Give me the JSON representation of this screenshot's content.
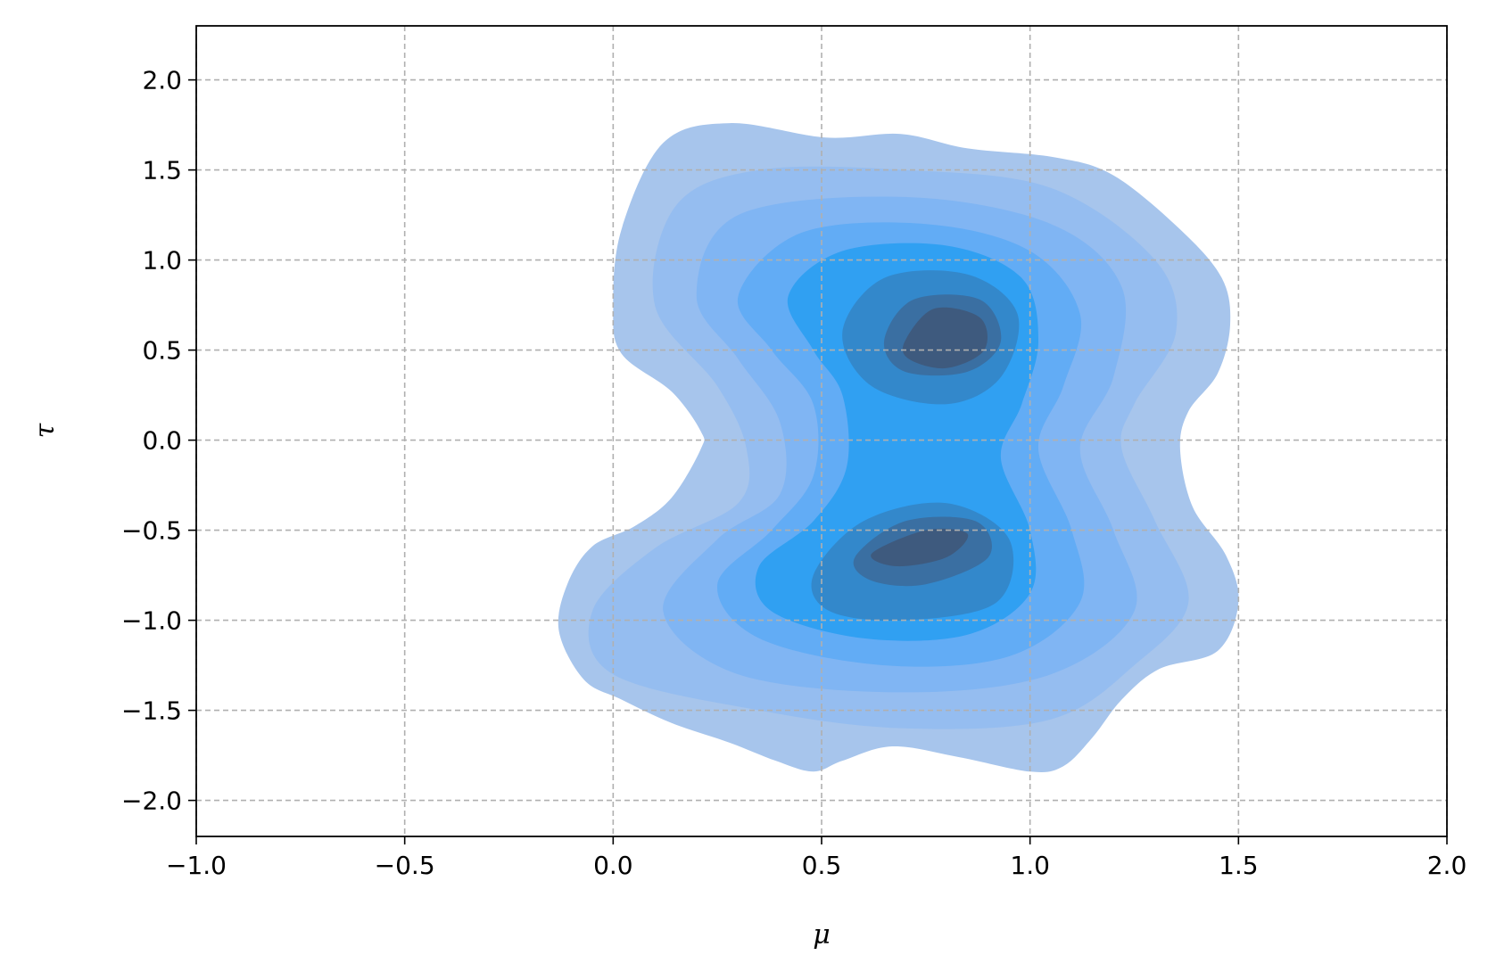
{
  "chart_data": {
    "type": "contour",
    "xlabel": "μ",
    "ylabel": "τ",
    "xlim": [
      -1,
      2
    ],
    "ylim": [
      -2.2,
      2.3
    ],
    "xticks": [
      {
        "value": -1,
        "label": "−1.0"
      },
      {
        "value": -0.5,
        "label": "−0.5"
      },
      {
        "value": 0,
        "label": "0.0"
      },
      0.5,
      {
        "value": 1,
        "label": "1.0"
      },
      1.5,
      {
        "value": 2,
        "label": "2.0"
      }
    ],
    "yticks": [
      {
        "value": -2,
        "label": "−2.0"
      },
      {
        "value": -1.5,
        "label": "−1.5"
      },
      {
        "value": -1,
        "label": "−1.0"
      },
      {
        "value": -0.5,
        "label": "−0.5"
      },
      {
        "value": 0,
        "label": "0.0"
      },
      0.5,
      {
        "value": 1,
        "label": "1.0"
      },
      1.5,
      {
        "value": 2,
        "label": "2.0"
      }
    ],
    "grid": true,
    "series": [
      {
        "color": "#a7c5ec",
        "x": [
          0.0,
          0.02,
          0.12,
          0.28,
          0.51,
          0.69,
          0.85,
          1.06,
          1.2,
          1.36,
          1.46,
          1.48,
          1.45,
          1.38,
          1.36,
          1.39,
          1.47,
          1.5,
          1.45,
          1.31,
          1.22,
          1.15,
          1.08,
          1.0,
          0.83,
          0.67,
          0.55,
          0.48,
          0.39,
          0.28,
          0.14,
          0.02,
          -0.07,
          -0.13,
          -0.11,
          -0.05,
          0.05,
          0.14,
          0.21,
          0.21,
          0.14,
          0.02
        ],
        "y": [
          0.74,
          1.17,
          1.65,
          1.76,
          1.68,
          1.7,
          1.62,
          1.57,
          1.47,
          1.17,
          0.9,
          0.64,
          0.37,
          0.16,
          -0.05,
          -0.37,
          -0.64,
          -0.9,
          -1.17,
          -1.27,
          -1.44,
          -1.65,
          -1.81,
          -1.84,
          -1.76,
          -1.7,
          -1.78,
          -1.84,
          -1.78,
          -1.68,
          -1.57,
          -1.44,
          -1.33,
          -1.06,
          -0.8,
          -0.59,
          -0.48,
          -0.32,
          -0.05,
          0.05,
          0.27,
          0.48
        ]
      },
      {
        "color": "#95bdf0",
        "x": [
          0.1,
          0.15,
          0.35,
          0.7,
          1.05,
          1.3,
          1.35,
          1.25,
          1.22,
          1.3,
          1.38,
          1.25,
          1.05,
          0.7,
          0.35,
          0.0,
          -0.05,
          0.1,
          0.3,
          0.32,
          0.25
        ],
        "y": [
          0.75,
          1.3,
          1.5,
          1.5,
          1.4,
          1.0,
          0.6,
          0.2,
          -0.05,
          -0.45,
          -0.9,
          -1.25,
          -1.55,
          -1.6,
          -1.5,
          -1.3,
          -0.95,
          -0.6,
          -0.35,
          -0.05,
          0.3
        ]
      },
      {
        "color": "#80b5f3",
        "x": [
          0.2,
          0.3,
          0.7,
          1.05,
          1.22,
          1.2,
          1.12,
          1.2,
          1.25,
          1.05,
          0.7,
          0.3,
          0.12,
          0.25,
          0.4,
          0.4,
          0.3
        ],
        "y": [
          0.8,
          1.25,
          1.35,
          1.2,
          0.85,
          0.35,
          -0.05,
          -0.5,
          -0.95,
          -1.3,
          -1.4,
          -1.3,
          -0.95,
          -0.55,
          -0.3,
          0.1,
          0.45
        ]
      },
      {
        "color": "#62acf5",
        "x": [
          0.3,
          0.45,
          0.75,
          1.0,
          1.12,
          1.08,
          1.02,
          1.1,
          1.12,
          0.95,
          0.65,
          0.35,
          0.25,
          0.38,
          0.48,
          0.48,
          0.38
        ],
        "y": [
          0.8,
          1.15,
          1.2,
          1.05,
          0.7,
          0.3,
          -0.05,
          -0.5,
          -0.9,
          -1.2,
          -1.25,
          -1.1,
          -0.8,
          -0.5,
          -0.2,
          0.2,
          0.5
        ]
      },
      {
        "color": "#30a0f2",
        "x": [
          0.42,
          0.55,
          0.8,
          0.98,
          1.02,
          0.98,
          0.93,
          1.0,
          1.0,
          0.85,
          0.6,
          0.38,
          0.35,
          0.48,
          0.56,
          0.55,
          0.48
        ],
        "y": [
          0.8,
          1.05,
          1.08,
          0.9,
          0.55,
          0.2,
          -0.1,
          -0.5,
          -0.85,
          -1.08,
          -1.1,
          -0.95,
          -0.7,
          -0.45,
          -0.15,
          0.25,
          0.5
        ]
      },
      {
        "color": "#3388cb",
        "x": [
          0.55,
          0.65,
          0.85,
          0.97,
          0.93,
          0.8,
          0.62
        ],
        "y": [
          0.6,
          0.9,
          0.92,
          0.7,
          0.35,
          0.2,
          0.3
        ]
      },
      {
        "color": "#3388cb",
        "x": [
          0.48,
          0.6,
          0.8,
          0.95,
          0.92,
          0.7,
          0.52
        ],
        "y": [
          -0.75,
          -0.45,
          -0.35,
          -0.55,
          -0.9,
          -1.0,
          -0.95
        ]
      },
      {
        "color": "#3a6fa2",
        "x": [
          0.65,
          0.72,
          0.88,
          0.93,
          0.85,
          0.7
        ],
        "y": [
          0.55,
          0.78,
          0.78,
          0.55,
          0.38,
          0.38
        ]
      },
      {
        "color": "#3a6fa2",
        "x": [
          0.58,
          0.7,
          0.87,
          0.9,
          0.75,
          0.62
        ],
        "y": [
          -0.65,
          -0.45,
          -0.45,
          -0.65,
          -0.8,
          -0.78
        ]
      },
      {
        "color": "#3e5a7e",
        "x": [
          0.7,
          0.77,
          0.88,
          0.89,
          0.8,
          0.71
        ],
        "y": [
          0.55,
          0.73,
          0.68,
          0.5,
          0.4,
          0.45
        ]
      },
      {
        "color": "#3e5a7e",
        "x": [
          0.62,
          0.75,
          0.85,
          0.8,
          0.68
        ],
        "y": [
          -0.63,
          -0.5,
          -0.52,
          -0.65,
          -0.7
        ]
      }
    ]
  }
}
